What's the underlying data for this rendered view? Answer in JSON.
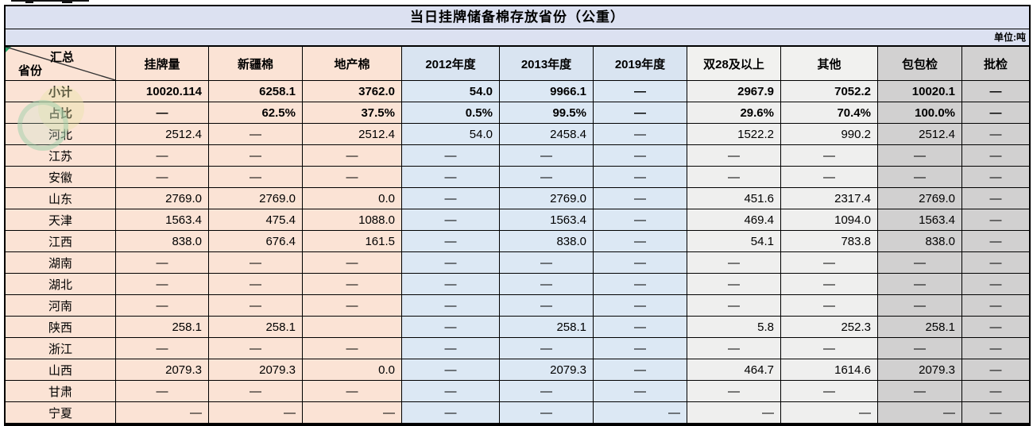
{
  "title": "当日挂牌储备棉存放省份（公重）",
  "unit_label": "单位:吨",
  "corner": {
    "top_label": "汇总",
    "bottom_label": "省份"
  },
  "colors": {
    "band": "#dce1f1",
    "peach": "#fbe3d5",
    "blue_header": "#d9e4f1",
    "blue_cell": "#dce8f4",
    "light_gray": "#efefee",
    "gray": "#d1d0d0",
    "border": "#000000",
    "marker_green": "#21a366"
  },
  "columns": [
    {
      "label": "挂牌量",
      "group": "peach"
    },
    {
      "label": "新疆棉",
      "group": "peach"
    },
    {
      "label": "地产棉",
      "group": "peach"
    },
    {
      "label": "2012年度",
      "group": "blue"
    },
    {
      "label": "2013年度",
      "group": "blue"
    },
    {
      "label": "2019年度",
      "group": "blue"
    },
    {
      "label": "双28及以上",
      "group": "lgray"
    },
    {
      "label": "其他",
      "group": "lgray"
    },
    {
      "label": "包包检",
      "group": "gray"
    },
    {
      "label": "批检",
      "group": "gray"
    }
  ],
  "rows": [
    {
      "name": "小计",
      "bold": true,
      "cells": [
        "10020.114",
        "6258.1",
        "3762.0",
        "54.0",
        "9966.1",
        "—",
        "2967.9",
        "7052.2",
        "10020.1",
        "—"
      ]
    },
    {
      "name": "占比",
      "bold": true,
      "cells": [
        "—",
        "62.5%",
        "37.5%",
        "0.5%",
        "99.5%",
        "—",
        "29.6%",
        "70.4%",
        "100.0%",
        "—"
      ]
    },
    {
      "name": "河北",
      "cells": [
        "2512.4",
        "—",
        "2512.4",
        "54.0",
        "2458.4",
        "—",
        "1522.2",
        "990.2",
        "2512.4",
        "—"
      ]
    },
    {
      "name": "江苏",
      "cells": [
        "—",
        "—",
        "—",
        "—",
        "—",
        "—",
        "—",
        "—",
        "—",
        "—"
      ]
    },
    {
      "name": "安徽",
      "cells": [
        "—",
        "—",
        "—",
        "—",
        "—",
        "—",
        "—",
        "—",
        "—",
        "—"
      ]
    },
    {
      "name": "山东",
      "cells": [
        "2769.0",
        "2769.0",
        "0.0",
        "—",
        "2769.0",
        "—",
        "451.6",
        "2317.4",
        "2769.0",
        "—"
      ]
    },
    {
      "name": "天津",
      "cells": [
        "1563.4",
        "475.4",
        "1088.0",
        "—",
        "1563.4",
        "—",
        "469.4",
        "1094.0",
        "1563.4",
        "—"
      ]
    },
    {
      "name": "江西",
      "cells": [
        "838.0",
        "676.4",
        "161.5",
        "—",
        "838.0",
        "—",
        "54.1",
        "783.8",
        "838.0",
        "—"
      ]
    },
    {
      "name": "湖南",
      "cells": [
        "—",
        "—",
        "—",
        "—",
        "—",
        "—",
        "—",
        "—",
        "—",
        "—"
      ]
    },
    {
      "name": "湖北",
      "cells": [
        "—",
        "—",
        "—",
        "—",
        "—",
        "—",
        "—",
        "—",
        "—",
        "—"
      ]
    },
    {
      "name": "河南",
      "cells": [
        "—",
        "—",
        "—",
        "—",
        "—",
        "—",
        "—",
        "—",
        "—",
        "—"
      ]
    },
    {
      "name": "陕西",
      "cells": [
        "258.1",
        "258.1",
        "",
        "—",
        "258.1",
        "—",
        "5.8",
        "252.3",
        "258.1",
        "—"
      ]
    },
    {
      "name": "浙江",
      "cells": [
        "—",
        "—",
        "—",
        "—",
        "—",
        "—",
        "—",
        "—",
        "—",
        "—"
      ]
    },
    {
      "name": "山西",
      "cells": [
        "2079.3",
        "2079.3",
        "0.0",
        "—",
        "2079.3",
        "—",
        "464.7",
        "1614.6",
        "2079.3",
        "—"
      ]
    },
    {
      "name": "甘肃",
      "cells": [
        "—",
        "—",
        "—",
        "—",
        "—",
        "—",
        "—",
        "—",
        "—",
        "—"
      ]
    },
    {
      "name": "宁夏",
      "cells": [
        "—",
        "—",
        "—",
        "—",
        "—",
        "—",
        "—",
        "—",
        "—",
        "—"
      ],
      "dash_align_right": [
        0,
        1,
        2,
        5,
        6,
        7,
        8
      ]
    }
  ]
}
